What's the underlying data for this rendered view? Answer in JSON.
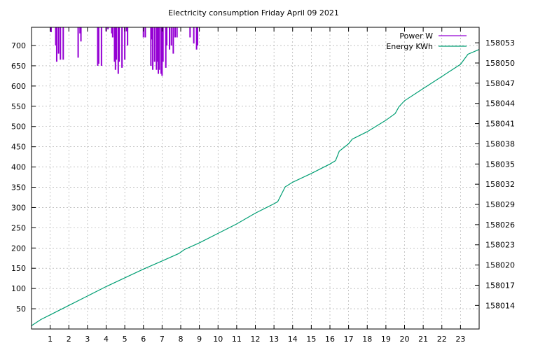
{
  "chart_data": {
    "type": "line",
    "title": "Electricity consumption Friday April 09 2021",
    "xlabel": "",
    "ylabel": "",
    "y2label": "",
    "grid": true,
    "legend_position": "top-right",
    "x_ticks": [
      "1",
      "2",
      "3",
      "4",
      "5",
      "6",
      "7",
      "8",
      "9",
      "10",
      "11",
      "12",
      "13",
      "14",
      "15",
      "16",
      "17",
      "18",
      "19",
      "20",
      "21",
      "22",
      "23"
    ],
    "xlim": [
      0,
      24
    ],
    "y_ticks": [
      50,
      100,
      150,
      200,
      250,
      300,
      350,
      400,
      450,
      500,
      550,
      600,
      650,
      700
    ],
    "ylim": [
      0,
      745
    ],
    "y2_ticks": [
      158014,
      158017,
      158020,
      158023,
      158026,
      158029,
      158032,
      158035,
      158038,
      158041,
      158044,
      158047,
      158050,
      158053
    ],
    "y2lim": [
      158010.5,
      158055.3
    ],
    "series": [
      {
        "name": "Power W",
        "color": "#9400d3",
        "axis": "y",
        "style": "impulses",
        "points": [
          {
            "x": 0.95,
            "y": 745
          },
          {
            "x": 1.05,
            "y": 733
          },
          {
            "x": 1.3,
            "y": 700
          },
          {
            "x": 1.35,
            "y": 660
          },
          {
            "x": 1.45,
            "y": 680
          },
          {
            "x": 1.55,
            "y": 665
          },
          {
            "x": 1.7,
            "y": 665
          },
          {
            "x": 1.75,
            "y": 745
          },
          {
            "x": 2.0,
            "y": 745
          },
          {
            "x": 2.5,
            "y": 670
          },
          {
            "x": 2.6,
            "y": 730
          },
          {
            "x": 2.65,
            "y": 710
          },
          {
            "x": 2.7,
            "y": 745
          },
          {
            "x": 3.55,
            "y": 650
          },
          {
            "x": 3.6,
            "y": 655
          },
          {
            "x": 3.7,
            "y": 745
          },
          {
            "x": 3.75,
            "y": 650
          },
          {
            "x": 3.85,
            "y": 745
          },
          {
            "x": 4.0,
            "y": 735
          },
          {
            "x": 4.1,
            "y": 740
          },
          {
            "x": 4.3,
            "y": 730
          },
          {
            "x": 4.35,
            "y": 720
          },
          {
            "x": 4.45,
            "y": 660
          },
          {
            "x": 4.5,
            "y": 640
          },
          {
            "x": 4.55,
            "y": 665
          },
          {
            "x": 4.65,
            "y": 630
          },
          {
            "x": 4.7,
            "y": 660
          },
          {
            "x": 4.85,
            "y": 645
          },
          {
            "x": 4.9,
            "y": 745
          },
          {
            "x": 5.0,
            "y": 665
          },
          {
            "x": 5.05,
            "y": 745
          },
          {
            "x": 5.1,
            "y": 735
          },
          {
            "x": 5.15,
            "y": 700
          },
          {
            "x": 5.2,
            "y": 745
          },
          {
            "x": 6.0,
            "y": 720
          },
          {
            "x": 6.1,
            "y": 720
          },
          {
            "x": 6.15,
            "y": 745
          },
          {
            "x": 6.25,
            "y": 745
          },
          {
            "x": 6.4,
            "y": 650
          },
          {
            "x": 6.45,
            "y": 715
          },
          {
            "x": 6.5,
            "y": 640
          },
          {
            "x": 6.6,
            "y": 660
          },
          {
            "x": 6.7,
            "y": 640
          },
          {
            "x": 6.75,
            "y": 660
          },
          {
            "x": 6.8,
            "y": 630
          },
          {
            "x": 6.85,
            "y": 640
          },
          {
            "x": 6.9,
            "y": 745
          },
          {
            "x": 6.95,
            "y": 630
          },
          {
            "x": 7.0,
            "y": 625
          },
          {
            "x": 7.05,
            "y": 660
          },
          {
            "x": 7.1,
            "y": 745
          },
          {
            "x": 7.2,
            "y": 645
          },
          {
            "x": 7.25,
            "y": 700
          },
          {
            "x": 7.3,
            "y": 745
          },
          {
            "x": 7.4,
            "y": 690
          },
          {
            "x": 7.5,
            "y": 700
          },
          {
            "x": 7.55,
            "y": 745
          },
          {
            "x": 7.6,
            "y": 680
          },
          {
            "x": 7.7,
            "y": 720
          },
          {
            "x": 7.8,
            "y": 720
          },
          {
            "x": 8.5,
            "y": 720
          },
          {
            "x": 8.7,
            "y": 705
          },
          {
            "x": 8.8,
            "y": 745
          },
          {
            "x": 8.85,
            "y": 690
          },
          {
            "x": 8.9,
            "y": 700
          },
          {
            "x": 8.95,
            "y": 745
          }
        ]
      },
      {
        "name": "Energy KWh",
        "color": "#009e73",
        "axis": "y2",
        "style": "line",
        "points": [
          {
            "x": 0,
            "y": 158011.0
          },
          {
            "x": 0.5,
            "y": 158011.9
          },
          {
            "x": 1,
            "y": 158012.6
          },
          {
            "x": 2,
            "y": 158014.0
          },
          {
            "x": 3,
            "y": 158015.4
          },
          {
            "x": 4,
            "y": 158016.8
          },
          {
            "x": 5,
            "y": 158018.1
          },
          {
            "x": 6,
            "y": 158019.4
          },
          {
            "x": 7,
            "y": 158020.6
          },
          {
            "x": 7.9,
            "y": 158021.7
          },
          {
            "x": 8.2,
            "y": 158022.3
          },
          {
            "x": 9,
            "y": 158023.3
          },
          {
            "x": 10,
            "y": 158024.7
          },
          {
            "x": 11,
            "y": 158026.1
          },
          {
            "x": 12,
            "y": 158027.7
          },
          {
            "x": 13,
            "y": 158029.1
          },
          {
            "x": 13.2,
            "y": 158029.4
          },
          {
            "x": 13.6,
            "y": 158031.6
          },
          {
            "x": 14,
            "y": 158032.3
          },
          {
            "x": 15,
            "y": 158033.6
          },
          {
            "x": 16,
            "y": 158035.0
          },
          {
            "x": 16.3,
            "y": 158035.5
          },
          {
            "x": 16.5,
            "y": 158036.9
          },
          {
            "x": 17,
            "y": 158038.0
          },
          {
            "x": 17.2,
            "y": 158038.7
          },
          {
            "x": 18,
            "y": 158039.8
          },
          {
            "x": 19,
            "y": 158041.5
          },
          {
            "x": 19.5,
            "y": 158042.5
          },
          {
            "x": 19.7,
            "y": 158043.5
          },
          {
            "x": 20,
            "y": 158044.4
          },
          {
            "x": 21,
            "y": 158046.2
          },
          {
            "x": 22,
            "y": 158048.0
          },
          {
            "x": 23,
            "y": 158049.8
          },
          {
            "x": 23.4,
            "y": 158051.3
          },
          {
            "x": 24,
            "y": 158052.0
          }
        ]
      }
    ]
  }
}
